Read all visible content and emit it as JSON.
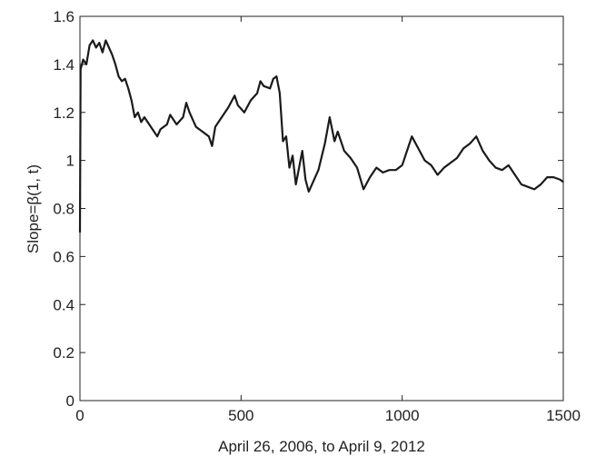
{
  "chart_data": {
    "type": "line",
    "xlabel": "April 26, 2006, to April 9, 2012",
    "ylabel": "Slope=β(1, t)",
    "xlim": [
      0,
      1500
    ],
    "xticks": [
      0,
      500,
      1000,
      1500
    ],
    "ylim": [
      0,
      1.6
    ],
    "yticks": [
      0,
      0.2,
      0.4,
      0.6,
      0.8,
      1,
      1.2,
      1.4,
      1.6
    ],
    "x": [
      0,
      2,
      10,
      20,
      30,
      40,
      50,
      60,
      70,
      80,
      90,
      100,
      110,
      120,
      130,
      140,
      150,
      160,
      170,
      180,
      190,
      200,
      220,
      240,
      250,
      270,
      280,
      300,
      320,
      330,
      340,
      350,
      360,
      380,
      400,
      410,
      420,
      440,
      460,
      480,
      490,
      510,
      530,
      550,
      560,
      570,
      590,
      600,
      610,
      620,
      630,
      640,
      650,
      660,
      670,
      680,
      690,
      700,
      710,
      720,
      740,
      760,
      775,
      790,
      800,
      820,
      840,
      860,
      880,
      900,
      920,
      940,
      960,
      980,
      1000,
      1020,
      1030,
      1050,
      1070,
      1090,
      1110,
      1130,
      1150,
      1170,
      1190,
      1210,
      1230,
      1250,
      1270,
      1290,
      1310,
      1330,
      1350,
      1370,
      1390,
      1410,
      1430,
      1450,
      1470,
      1490,
      1500
    ],
    "series": [
      {
        "color": "#1a1a1a",
        "values": [
          0.7,
          1.38,
          1.42,
          1.4,
          1.48,
          1.5,
          1.47,
          1.49,
          1.45,
          1.5,
          1.47,
          1.44,
          1.4,
          1.35,
          1.33,
          1.34,
          1.3,
          1.25,
          1.18,
          1.2,
          1.16,
          1.18,
          1.14,
          1.1,
          1.13,
          1.15,
          1.19,
          1.15,
          1.18,
          1.24,
          1.2,
          1.17,
          1.14,
          1.12,
          1.1,
          1.06,
          1.14,
          1.18,
          1.22,
          1.27,
          1.23,
          1.2,
          1.25,
          1.28,
          1.33,
          1.31,
          1.3,
          1.34,
          1.35,
          1.28,
          1.08,
          1.1,
          0.97,
          1.02,
          0.9,
          0.97,
          1.04,
          0.92,
          0.87,
          0.9,
          0.96,
          1.07,
          1.18,
          1.08,
          1.12,
          1.04,
          1.01,
          0.97,
          0.88,
          0.93,
          0.97,
          0.95,
          0.96,
          0.96,
          0.98,
          1.06,
          1.1,
          1.05,
          1.0,
          0.98,
          0.94,
          0.97,
          0.99,
          1.01,
          1.05,
          1.07,
          1.1,
          1.04,
          1.0,
          0.97,
          0.96,
          0.98,
          0.94,
          0.9,
          0.89,
          0.88,
          0.9,
          0.93,
          0.93,
          0.92,
          0.91
        ]
      }
    ]
  }
}
